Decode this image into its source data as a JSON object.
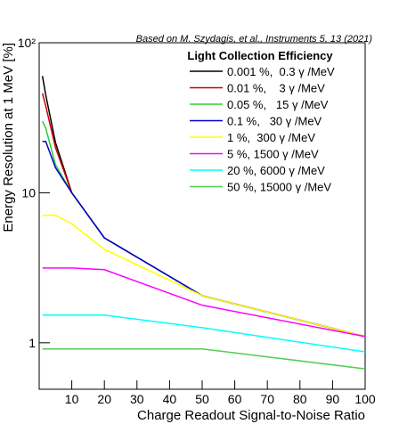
{
  "chart_data": {
    "type": "line",
    "annotation": "Based on M. Szydagis, et al., Instruments 5, 13 (2021)",
    "xlabel": "Charge Readout Signal-to-Noise Ratio",
    "ylabel": "Energy Resolution at 1 MeV [%]",
    "legend_title": "Light Collection Efficiency",
    "x": [
      1,
      2,
      5,
      10,
      20,
      50,
      100
    ],
    "series": [
      {
        "name": "0.001 %,  0.3 γ /MeV",
        "color": "#000000",
        "values": [
          60,
          45,
          21.6,
          10,
          5,
          2.06,
          1.1
        ]
      },
      {
        "name": "0.01 %,    3 γ /MeV",
        "color": "#cc0000",
        "values": [
          46,
          38,
          20,
          10,
          5,
          2.06,
          1.1
        ]
      },
      {
        "name": "0.05 %,   15 γ /MeV",
        "color": "#33cc33",
        "values": [
          30,
          27,
          15.4,
          10,
          5,
          2.06,
          1.1
        ]
      },
      {
        "name": "0.1 %,   30 γ /MeV",
        "color": "#0000cc",
        "values": [
          22,
          22,
          14.7,
          10,
          5,
          2.06,
          1.1
        ]
      },
      {
        "name": "1 %,  300 γ /MeV",
        "color": "#ffff00",
        "values": [
          7,
          7.1,
          7.1,
          6.2,
          4.2,
          2.06,
          1.1
        ]
      },
      {
        "name": "5 %, 1500 γ /MeV",
        "color": "#ff00ff",
        "values": [
          3.15,
          3.15,
          3.15,
          3.15,
          3.07,
          1.78,
          1.1
        ]
      },
      {
        "name": "20 %, 6000 γ /MeV",
        "color": "#00ffff",
        "values": [
          1.53,
          1.53,
          1.53,
          1.53,
          1.53,
          1.26,
          0.87
        ]
      },
      {
        "name": "50 %, 15000 γ /MeV",
        "color": "#55cc55",
        "values": [
          0.91,
          0.91,
          0.91,
          0.91,
          0.91,
          0.91,
          0.67
        ]
      }
    ],
    "xlim": [
      0,
      100
    ],
    "xticks": [
      10,
      20,
      30,
      40,
      50,
      60,
      70,
      80,
      90,
      100
    ],
    "ylim": [
      0.49,
      100
    ],
    "ylog": true,
    "yticks": [
      1,
      10,
      {
        "value": 100,
        "label": "10²"
      }
    ],
    "grid": false,
    "legend": "upper right"
  }
}
